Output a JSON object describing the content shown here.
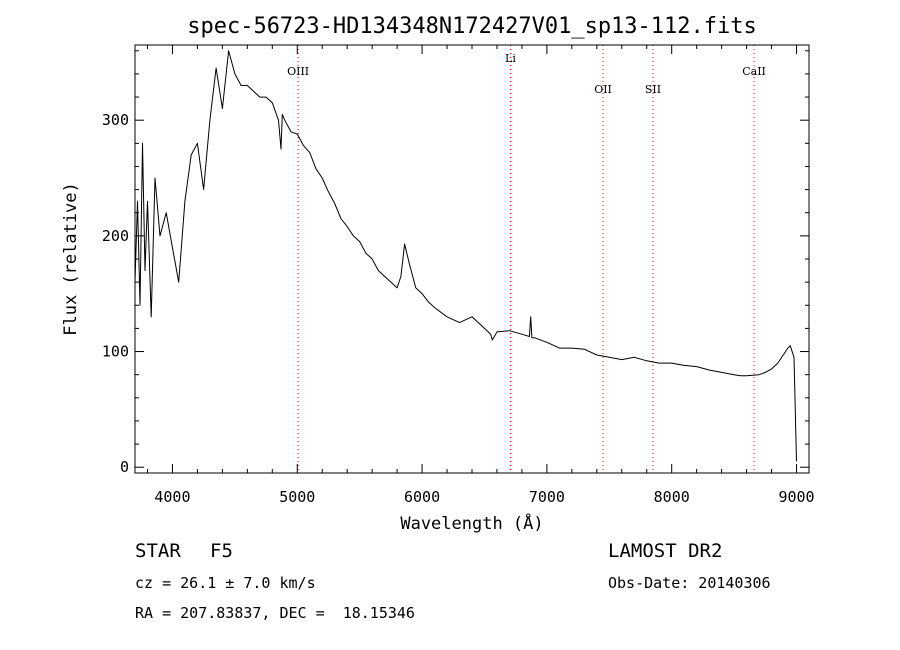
{
  "chart_data": {
    "type": "line",
    "title": "spec-56723-HD134348N172427V01_sp13-112.fits",
    "xlabel": "Wavelength (Å)",
    "ylabel": "Flux (relative)",
    "xlim": [
      3700,
      9100
    ],
    "ylim": [
      -5,
      365
    ],
    "xticks": [
      4000,
      5000,
      6000,
      7000,
      8000,
      9000
    ],
    "yticks": [
      0,
      100,
      200,
      300
    ],
    "grid": false,
    "series": [
      {
        "color": "#000000",
        "x": [
          3700,
          3720,
          3740,
          3760,
          3780,
          3800,
          3830,
          3860,
          3900,
          3950,
          4000,
          4050,
          4100,
          4150,
          4200,
          4250,
          4300,
          4350,
          4400,
          4450,
          4500,
          4550,
          4600,
          4650,
          4700,
          4750,
          4800,
          4850,
          4870,
          4880,
          4900,
          4950,
          5000,
          5050,
          5100,
          5150,
          5200,
          5250,
          5300,
          5350,
          5400,
          5450,
          5500,
          5550,
          5600,
          5650,
          5700,
          5750,
          5800,
          5830,
          5860,
          5900,
          5950,
          6000,
          6050,
          6100,
          6200,
          6300,
          6400,
          6500,
          6550,
          6563,
          6600,
          6700,
          6800,
          6860,
          6870,
          6880,
          6900,
          7000,
          7100,
          7200,
          7300,
          7400,
          7500,
          7600,
          7700,
          7800,
          7900,
          8000,
          8100,
          8200,
          8300,
          8400,
          8500,
          8550,
          8600,
          8700,
          8750,
          8800,
          8850,
          8900,
          8930,
          8950,
          8980,
          9000
        ],
        "y": [
          160,
          230,
          140,
          280,
          170,
          230,
          130,
          250,
          200,
          220,
          190,
          160,
          230,
          270,
          280,
          240,
          300,
          345,
          310,
          360,
          340,
          330,
          330,
          325,
          320,
          320,
          315,
          300,
          275,
          305,
          300,
          290,
          288,
          278,
          272,
          258,
          250,
          238,
          228,
          215,
          208,
          200,
          195,
          185,
          180,
          170,
          165,
          160,
          155,
          165,
          193,
          175,
          155,
          150,
          143,
          138,
          130,
          125,
          130,
          120,
          115,
          110,
          117,
          118,
          115,
          113,
          130,
          112,
          112,
          108,
          103,
          103,
          102,
          97,
          95,
          93,
          95,
          92,
          90,
          90,
          88,
          87,
          84,
          82,
          80,
          79,
          79,
          80,
          82,
          85,
          90,
          98,
          103,
          105,
          95,
          5
        ]
      }
    ],
    "spectral_lines": [
      {
        "label": "OIII",
        "x": 5007,
        "color": "#cc0000"
      },
      {
        "label": "Li",
        "x": 6708,
        "color": "#cc0000"
      },
      {
        "label": "OII",
        "x": 7450,
        "color": "#cc0000"
      },
      {
        "label": "SII",
        "x": 7850,
        "color": "#cc0000"
      },
      {
        "label": "CaII",
        "x": 8660,
        "color": "#cc0000"
      }
    ]
  },
  "info": {
    "class_label": "STAR",
    "subclass": "F5",
    "survey": "LAMOST DR2",
    "cz": "cz = 26.1 ± 7.0 km/s",
    "obs_date": "Obs-Date: 20140306",
    "coords": "RA = 207.83837, DEC =  18.15346"
  }
}
